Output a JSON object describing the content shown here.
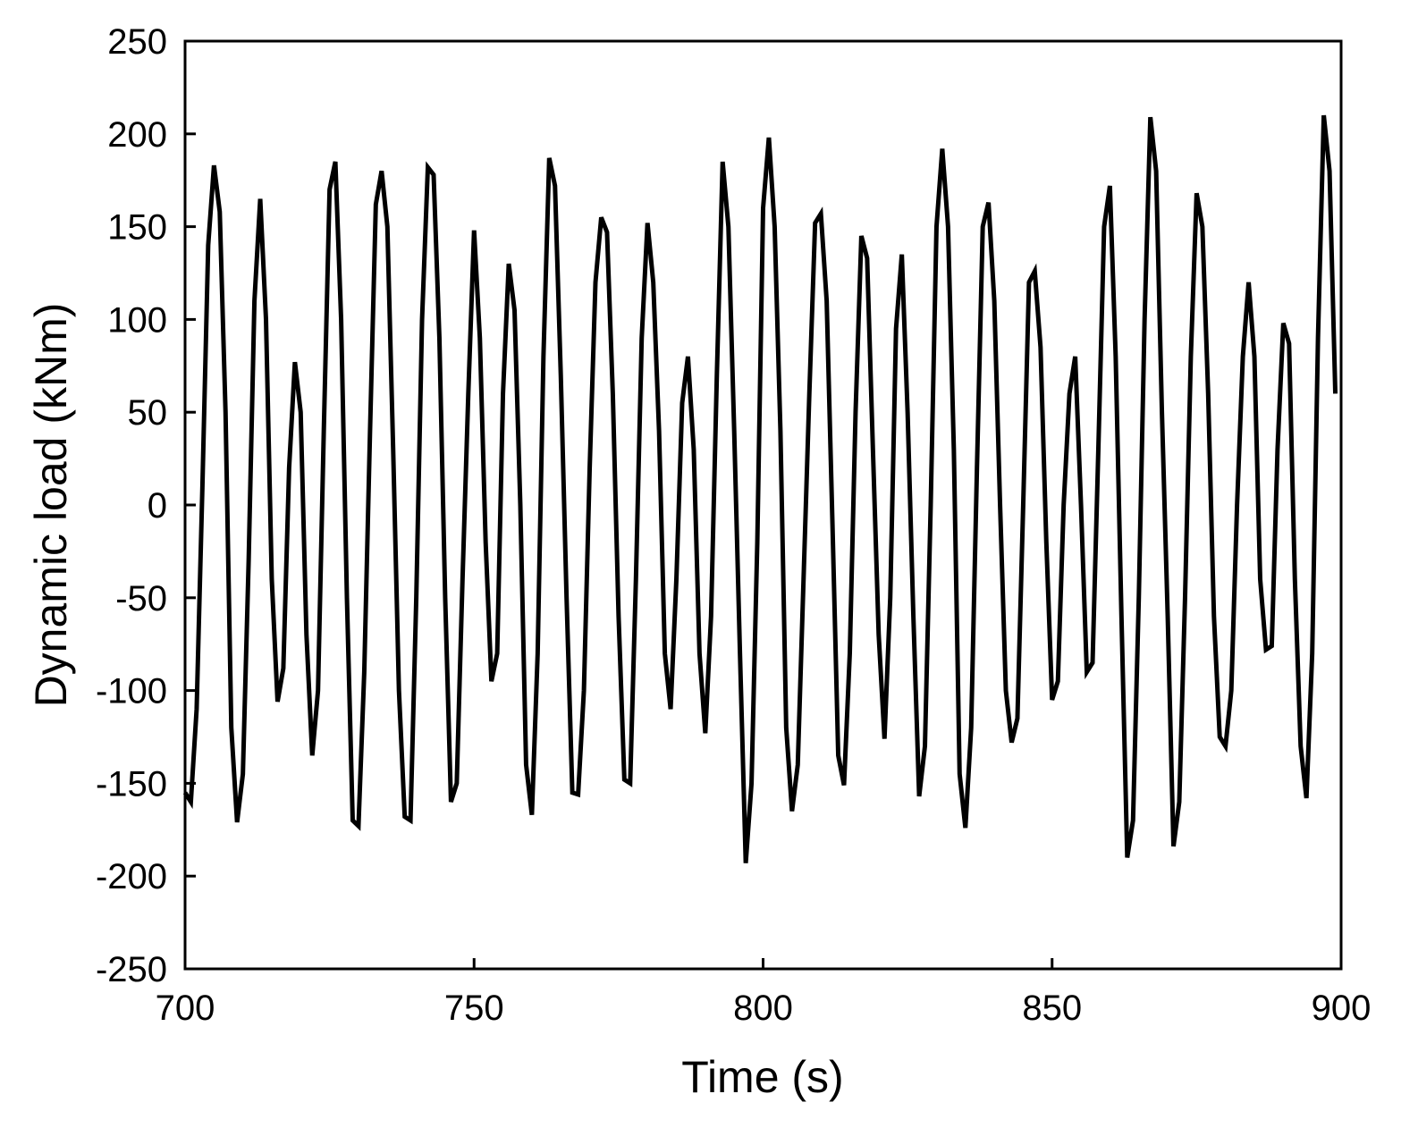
{
  "chart_data": {
    "type": "line",
    "x_label": "Time (s)",
    "y_label": "Dynamic load (kNm)",
    "xlim": [
      700,
      900
    ],
    "ylim": [
      -250,
      250
    ],
    "xticks": [
      700,
      750,
      800,
      850,
      900
    ],
    "yticks": [
      -250,
      -200,
      -150,
      -100,
      -50,
      0,
      50,
      100,
      150,
      200,
      250
    ],
    "grid": false,
    "series": [
      {
        "color": "#000000",
        "x": [
          700,
          701,
          702,
          703,
          704,
          705,
          706,
          707,
          708,
          709,
          710,
          711,
          712,
          713,
          714,
          715,
          716,
          717,
          718,
          719,
          720,
          721,
          722,
          723,
          724,
          725,
          726,
          727,
          728,
          729,
          730,
          731,
          732,
          733,
          734,
          735,
          736,
          737,
          738,
          739,
          740,
          741,
          742,
          743,
          744,
          745,
          746,
          747,
          748,
          749,
          750,
          751,
          752,
          753,
          754,
          755,
          756,
          757,
          758,
          759,
          760,
          761,
          762,
          763,
          764,
          765,
          766,
          767,
          768,
          769,
          770,
          771,
          772,
          773,
          774,
          775,
          776,
          777,
          778,
          779,
          780,
          781,
          782,
          783,
          784,
          785,
          786,
          787,
          788,
          789,
          790,
          791,
          792,
          793,
          794,
          795,
          796,
          797,
          798,
          799,
          800,
          801,
          802,
          803,
          804,
          805,
          806,
          807,
          808,
          809,
          810,
          811,
          812,
          813,
          814,
          815,
          816,
          817,
          818,
          819,
          820,
          821,
          822,
          823,
          824,
          825,
          826,
          827,
          828,
          829,
          830,
          831,
          832,
          833,
          834,
          835,
          836,
          837,
          838,
          839,
          840,
          841,
          842,
          843,
          844,
          845,
          846,
          847,
          848,
          849,
          850,
          851,
          852,
          853,
          854,
          855,
          856,
          857,
          858,
          859,
          860,
          861,
          862,
          863,
          864,
          865,
          866,
          867,
          868,
          869,
          870,
          871,
          872,
          873,
          874,
          875,
          876,
          877,
          878,
          879,
          880,
          881,
          882,
          883,
          884,
          885,
          886,
          887,
          888,
          889,
          890,
          891,
          892,
          893,
          894,
          895,
          896,
          897,
          898,
          899
        ],
        "values": [
          -155,
          -160,
          -110,
          10,
          140,
          183,
          158,
          50,
          -120,
          -171,
          -145,
          -30,
          110,
          165,
          100,
          -40,
          -106,
          -88,
          20,
          77,
          50,
          -70,
          -135,
          -100,
          40,
          170,
          185,
          100,
          -50,
          -170,
          -173,
          -90,
          40,
          162,
          180,
          150,
          30,
          -100,
          -168,
          -170,
          -50,
          100,
          182,
          178,
          90,
          -50,
          -160,
          -150,
          -40,
          60,
          148,
          90,
          -20,
          -95,
          -80,
          60,
          130,
          105,
          0,
          -140,
          -167,
          -80,
          80,
          187,
          172,
          70,
          -50,
          -155,
          -156,
          -100,
          20,
          120,
          155,
          147,
          60,
          -60,
          -148,
          -150,
          -40,
          90,
          152,
          120,
          40,
          -80,
          -110,
          -40,
          55,
          80,
          30,
          -80,
          -123,
          -60,
          70,
          185,
          150,
          40,
          -80,
          -193,
          -150,
          -20,
          160,
          198,
          150,
          40,
          -120,
          -165,
          -140,
          -40,
          60,
          152,
          157,
          110,
          -10,
          -135,
          -151,
          -80,
          50,
          145,
          133,
          30,
          -70,
          -126,
          -50,
          95,
          135,
          50,
          -60,
          -157,
          -130,
          0,
          150,
          192,
          150,
          30,
          -145,
          -174,
          -120,
          20,
          150,
          163,
          110,
          0,
          -100,
          -128,
          -115,
          0,
          120,
          126,
          85,
          -20,
          -105,
          -95,
          0,
          60,
          80,
          0,
          -90,
          -85,
          30,
          150,
          172,
          80,
          -60,
          -190,
          -170,
          -50,
          100,
          209,
          180,
          50,
          -60,
          -184,
          -160,
          -50,
          80,
          168,
          150,
          60,
          -60,
          -125,
          -130,
          -100,
          0,
          80,
          120,
          80,
          -40,
          -78,
          -76,
          30,
          98,
          87,
          -40,
          -130,
          -158,
          -80,
          90,
          210,
          180,
          60
        ]
      }
    ]
  }
}
